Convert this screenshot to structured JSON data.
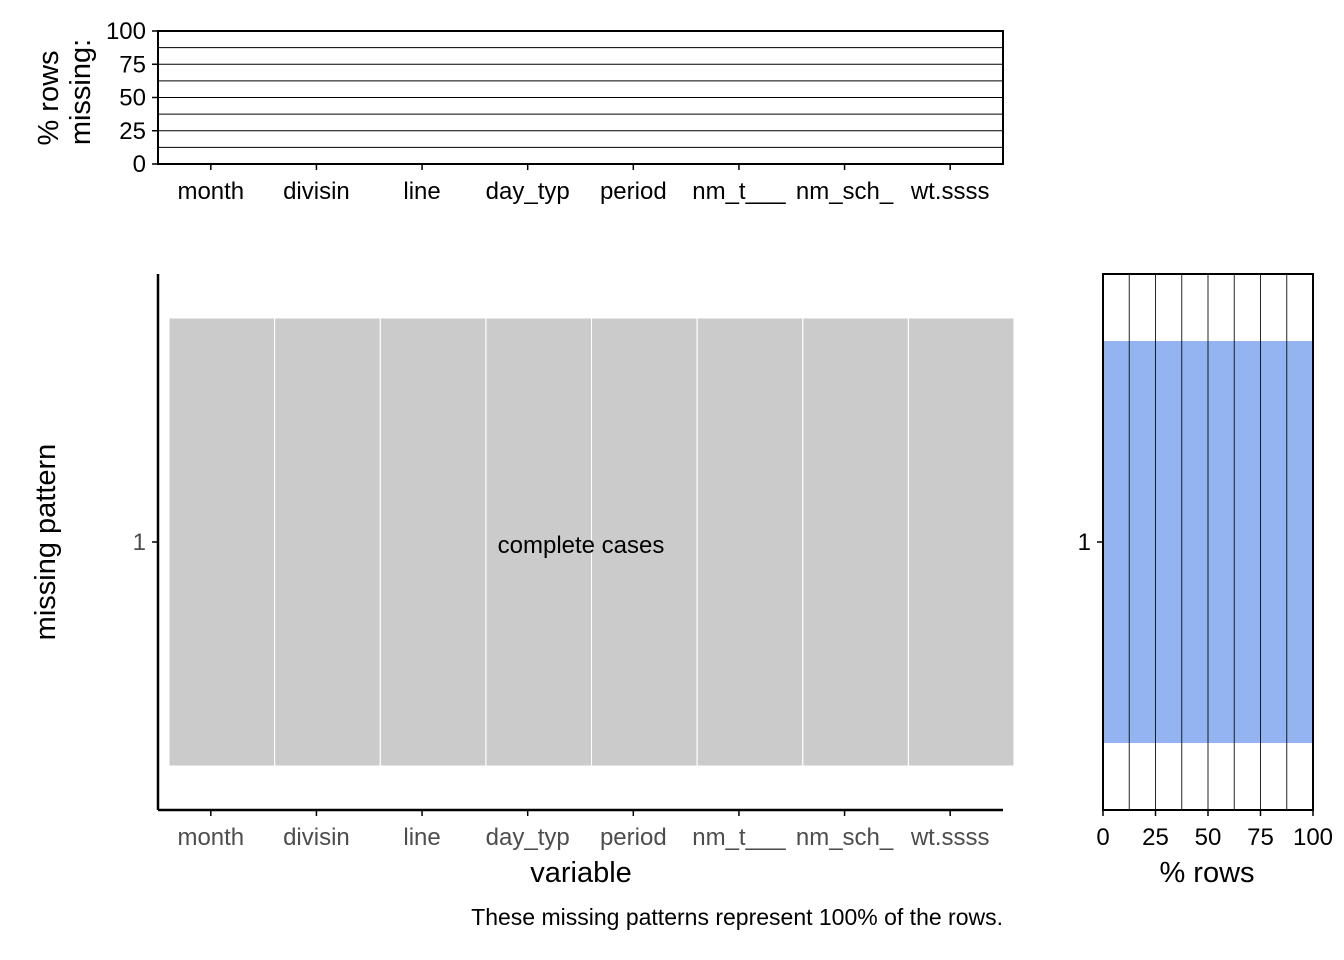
{
  "chart_data": [
    {
      "type": "bar",
      "panel": "top",
      "categories": [
        "month",
        "divisin",
        "line",
        "day_typ",
        "period",
        "nm_t___",
        "nm_sch_",
        "wt.ssss"
      ],
      "values": [
        0,
        0,
        0,
        0,
        0,
        0,
        0,
        0
      ],
      "ylabel_lines": [
        "% rows",
        "missing:"
      ],
      "ylim": [
        0,
        100
      ],
      "yticks": [
        "0",
        "25",
        "50",
        "75",
        "100"
      ],
      "grid": true
    },
    {
      "type": "heatmap",
      "panel": "main",
      "columns": [
        "month",
        "divisin",
        "line",
        "day_typ",
        "period",
        "nm_t___",
        "nm_sch_",
        "wt.ssss"
      ],
      "rows": [
        "1"
      ],
      "cells": [
        [
          0,
          0,
          0,
          0,
          0,
          0,
          0,
          0
        ]
      ],
      "annotation": "complete cases",
      "xlabel": "variable",
      "ylabel": "missing pattern",
      "colors": {
        "complete": "#cbcbcb"
      }
    },
    {
      "type": "bar",
      "panel": "right",
      "orientation": "horizontal",
      "categories": [
        "1"
      ],
      "values": [
        100
      ],
      "xlabel": "% rows",
      "xlim": [
        0,
        100
      ],
      "xticks": [
        "0",
        "25",
        "50",
        "75",
        "100"
      ],
      "grid": true,
      "colors": {
        "bar": "#93b4f1"
      }
    }
  ],
  "caption": "These missing patterns represent 100% of the rows."
}
